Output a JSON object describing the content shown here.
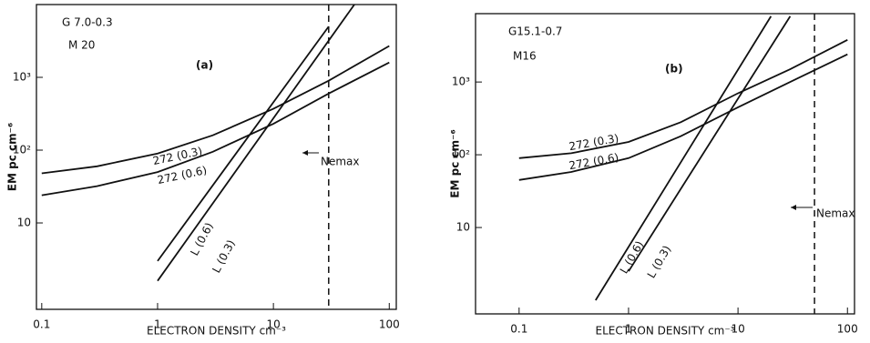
{
  "chart_data": [
    {
      "type": "line",
      "title": "G 7.0-0.3",
      "subtitle": "M 20",
      "panel_label": "(a)",
      "x_label": "ELECTRON DENSITY cm⁻³",
      "y_label": "EM pc cm⁻⁶",
      "x_log": true,
      "y_log": true,
      "xlim": [
        0.09,
        115
      ],
      "ylim": [
        0.65,
        10000
      ],
      "xticks": [
        0.1,
        1,
        10,
        100
      ],
      "yticks": [
        10,
        {
          "value": 100,
          "label": "10²"
        },
        {
          "value": 1000,
          "label": "10³"
        }
      ],
      "vline": {
        "x": 30,
        "label": "Nemax"
      },
      "series": [
        {
          "name": "272 (0.3)",
          "color": "#111111",
          "x": [
            0.1,
            0.3,
            1,
            3,
            10,
            30,
            100
          ],
          "values": [
            48,
            60,
            90,
            160,
            370,
            900,
            2700
          ]
        },
        {
          "name": "272 (0.6)",
          "color": "#111111",
          "x": [
            0.1,
            0.3,
            1,
            3,
            10,
            30,
            100
          ],
          "values": [
            24,
            32,
            50,
            95,
            230,
            600,
            1600
          ]
        },
        {
          "name": "L (0.6)",
          "color": "#111111",
          "x": [
            1,
            30
          ],
          "values": [
            3,
            5000
          ]
        },
        {
          "name": "L (0.3)",
          "color": "#111111",
          "x": [
            1,
            50
          ],
          "values": [
            1.6,
            10000
          ]
        }
      ]
    },
    {
      "type": "line",
      "title": "G15.1-0.7",
      "subtitle": "M16",
      "panel_label": "(b)",
      "x_label": "ELECTRON DENSITY cm⁻³",
      "y_label": "EM pc cm⁻⁶",
      "x_log": true,
      "y_log": true,
      "xlim": [
        0.04,
        116
      ],
      "ylim": [
        0.65,
        8700
      ],
      "xticks": [
        0.1,
        1,
        10,
        100
      ],
      "yticks": [
        10,
        {
          "value": 100,
          "label": "10²"
        },
        {
          "value": 1000,
          "label": "10³"
        }
      ],
      "vline": {
        "x": 50,
        "label": "Nemax"
      },
      "series": [
        {
          "name": "272 (0.3)",
          "color": "#111111",
          "x": [
            0.1,
            0.3,
            1,
            3,
            10,
            30,
            100
          ],
          "values": [
            90,
            105,
            150,
            280,
            700,
            1500,
            3800
          ]
        },
        {
          "name": "272 (0.6)",
          "color": "#111111",
          "x": [
            0.1,
            0.3,
            1,
            3,
            10,
            30,
            100
          ],
          "values": [
            45,
            58,
            90,
            180,
            450,
            1000,
            2400
          ]
        },
        {
          "name": "L (0.6)",
          "color": "#111111",
          "x": [
            0.5,
            20
          ],
          "values": [
            1,
            8000
          ]
        },
        {
          "name": "L (0.3)",
          "color": "#111111",
          "x": [
            1,
            30
          ],
          "values": [
            2.5,
            8000
          ]
        }
      ]
    }
  ]
}
